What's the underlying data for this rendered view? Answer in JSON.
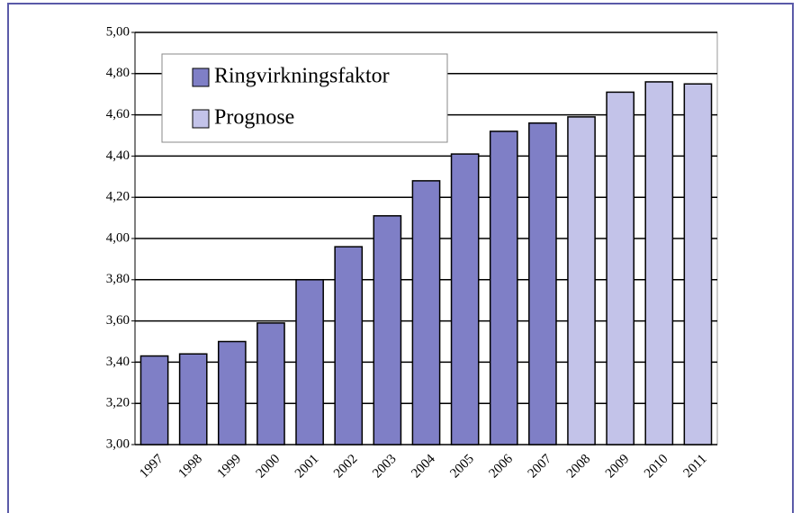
{
  "chart_data": {
    "type": "bar",
    "categories": [
      "1997",
      "1998",
      "1999",
      "2000",
      "2001",
      "2002",
      "2003",
      "2004",
      "2005",
      "2006",
      "2007",
      "2008",
      "2009",
      "2010",
      "2011"
    ],
    "series": [
      {
        "name": "Ringvirkningsfaktor",
        "color": "#7f7fc6",
        "values": [
          3.43,
          3.44,
          3.5,
          3.59,
          3.8,
          3.96,
          4.11,
          4.28,
          4.41,
          4.52,
          4.56,
          null,
          null,
          null,
          null
        ]
      },
      {
        "name": "Prognose",
        "color": "#c3c3e9",
        "values": [
          null,
          null,
          null,
          null,
          null,
          null,
          null,
          null,
          null,
          null,
          null,
          4.59,
          4.71,
          4.76,
          4.75
        ]
      }
    ],
    "ylim": [
      3,
      5
    ],
    "yticks": [
      {
        "value": 3,
        "label": "3,00"
      },
      {
        "value": 3.2,
        "label": "3,20"
      },
      {
        "value": 3.4,
        "label": "3,40"
      },
      {
        "value": 3.6,
        "label": "3,60"
      },
      {
        "value": 3.8,
        "label": "3,80"
      },
      {
        "value": 4,
        "label": "4,00"
      },
      {
        "value": 4.2,
        "label": "4,20"
      },
      {
        "value": 4.4,
        "label": "4,40"
      },
      {
        "value": 4.6,
        "label": "4,60"
      },
      {
        "value": 4.8,
        "label": "4,80"
      },
      {
        "value": 5,
        "label": "5,00"
      }
    ],
    "grid": true,
    "legend": "upper left"
  }
}
